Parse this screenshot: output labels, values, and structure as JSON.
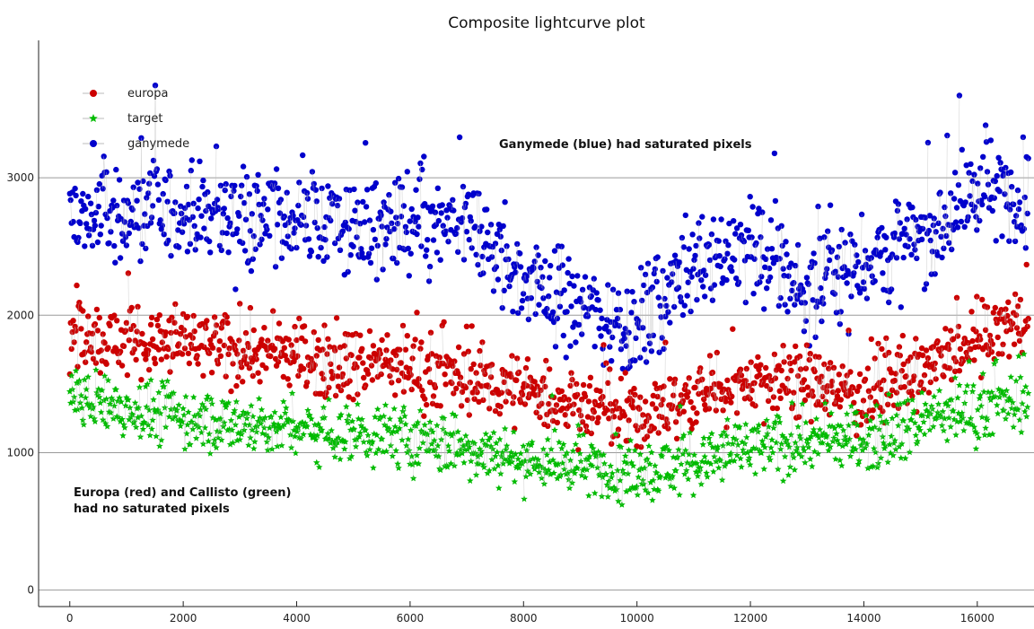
{
  "chart_data": {
    "type": "scatter",
    "title": "Composite lightcurve plot",
    "xlabel": "",
    "ylabel": "",
    "xlim": [
      -550,
      17000
    ],
    "ylim": [
      -120,
      4000
    ],
    "x_ticks": [
      0,
      2000,
      4000,
      6000,
      8000,
      10000,
      12000,
      14000,
      16000
    ],
    "x_tick_labels": [
      "0",
      "2000",
      "4000",
      "6000",
      "8000",
      "10000",
      "12000",
      "14000",
      "16000"
    ],
    "y_ticks": [
      0,
      1000,
      2000,
      3000
    ],
    "y_tick_labels": [
      "0",
      "1000",
      "2000",
      "3000"
    ],
    "grid": "horizontal",
    "legend_position": "top-left",
    "series": [
      {
        "name": "europa",
        "color": "#cc0000",
        "marker": "circle",
        "trend": [
          [
            0,
            1850
          ],
          [
            2000,
            1780
          ],
          [
            4000,
            1700
          ],
          [
            6000,
            1620
          ],
          [
            8000,
            1450
          ],
          [
            10000,
            1250
          ],
          [
            11000,
            1400
          ],
          [
            12000,
            1530
          ],
          [
            13000,
            1500
          ],
          [
            14000,
            1420
          ],
          [
            15000,
            1580
          ],
          [
            16000,
            1800
          ],
          [
            16900,
            2000
          ]
        ],
        "spread": 230
      },
      {
        "name": "target",
        "color": "#00bb00",
        "marker": "star",
        "trend": [
          [
            0,
            1400
          ],
          [
            2000,
            1250
          ],
          [
            4000,
            1180
          ],
          [
            6000,
            1100
          ],
          [
            8000,
            950
          ],
          [
            10000,
            850
          ],
          [
            11000,
            930
          ],
          [
            12000,
            1020
          ],
          [
            13000,
            1080
          ],
          [
            14000,
            1100
          ],
          [
            15000,
            1230
          ],
          [
            16000,
            1320
          ],
          [
            16900,
            1380
          ]
        ],
        "spread": 200
      },
      {
        "name": "ganymede",
        "color": "#0000cc",
        "marker": "circle",
        "trend": [
          [
            0,
            2700
          ],
          [
            2000,
            2750
          ],
          [
            4000,
            2700
          ],
          [
            6000,
            2600
          ],
          [
            7000,
            2650
          ],
          [
            8000,
            2250
          ],
          [
            10000,
            1900
          ],
          [
            11000,
            2400
          ],
          [
            12000,
            2500
          ],
          [
            13000,
            2150
          ],
          [
            14000,
            2400
          ],
          [
            15000,
            2550
          ],
          [
            16000,
            2900
          ],
          [
            16900,
            2850
          ]
        ],
        "spread": 330
      }
    ],
    "point_count_per_series": 1100,
    "annotations": [
      {
        "text": "Ganymede (blue) had saturated pixels"
      },
      {
        "line1": "Europa (red) and Callisto (green)",
        "line2": "had no saturated pixels"
      }
    ]
  }
}
